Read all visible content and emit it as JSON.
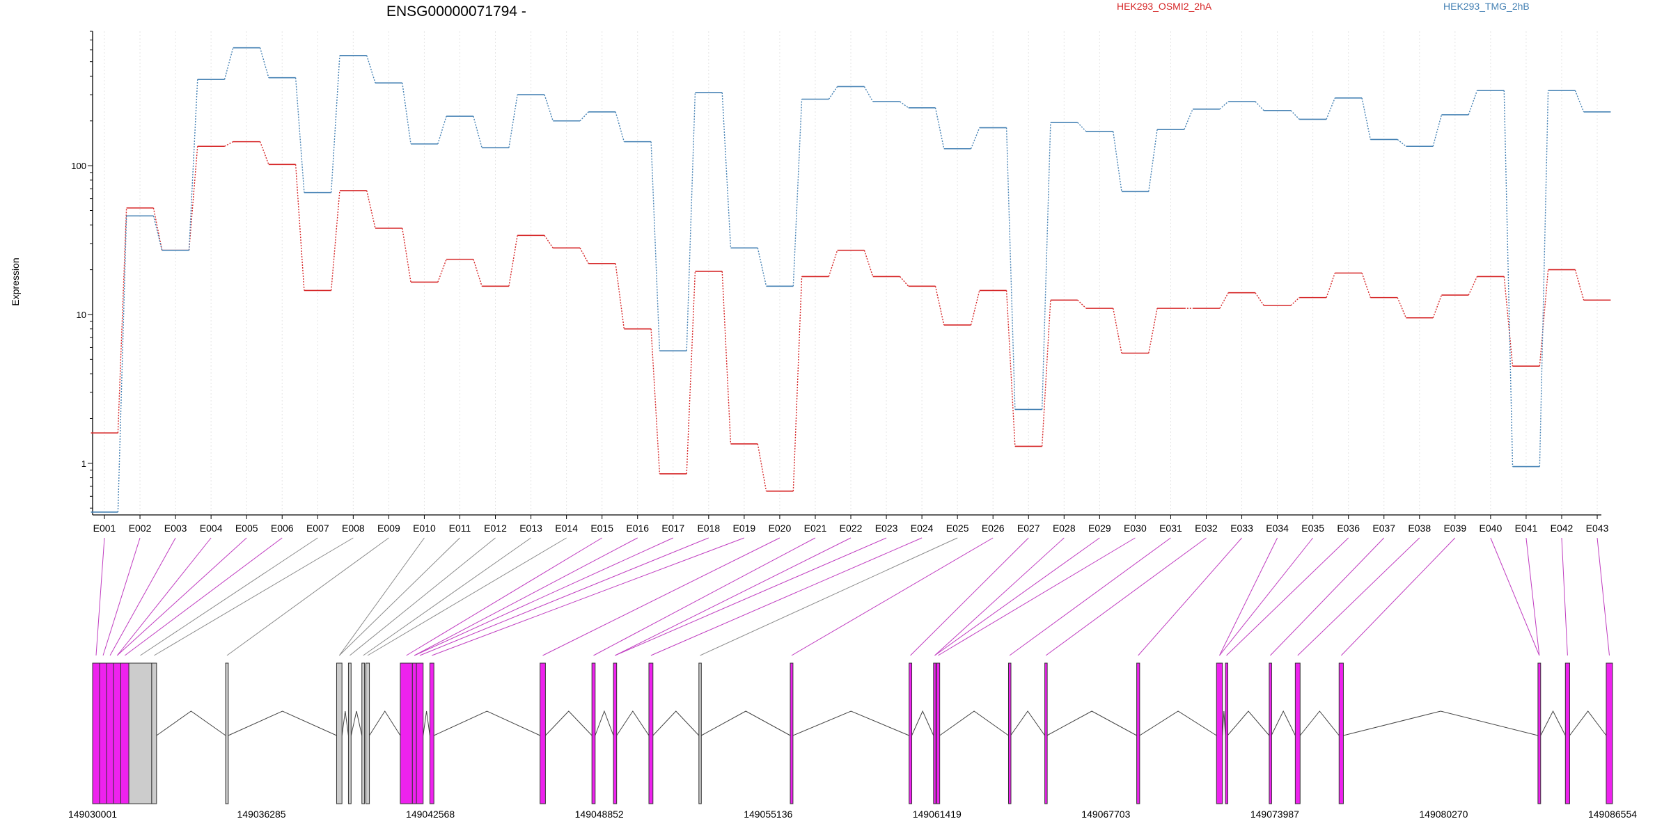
{
  "chart_data": {
    "type": "line",
    "title": "ENSG00000071794 -",
    "ylabel": "Expression",
    "xlabel": "",
    "y_scale": "log",
    "ylim": [
      0.45,
      800
    ],
    "y_ticks": [
      1,
      10,
      100
    ],
    "y_tick_labels": [
      "1",
      "10",
      "100"
    ],
    "grid": "vertical dotted per exon",
    "legend_position": "top",
    "categories": [
      "E001",
      "E002",
      "E003",
      "E004",
      "E005",
      "E006",
      "E007",
      "E008",
      "E009",
      "E010",
      "E011",
      "E012",
      "E013",
      "E014",
      "E015",
      "E016",
      "E017",
      "E018",
      "E019",
      "E020",
      "E021",
      "E022",
      "E023",
      "E024",
      "E025",
      "E026",
      "E027",
      "E028",
      "E029",
      "E030",
      "E031",
      "E032",
      "E033",
      "E034",
      "E035",
      "E036",
      "E037",
      "E038",
      "E039",
      "E040",
      "E041",
      "E042",
      "E043"
    ],
    "series": [
      {
        "name": "HEK293_OSMI2_2hA",
        "color": "#d62728",
        "values": [
          1.6,
          52,
          27,
          135,
          145,
          102,
          14.5,
          68,
          38,
          16.5,
          23.5,
          15.5,
          34,
          28,
          22,
          8,
          0.85,
          19.5,
          1.35,
          0.65,
          18,
          27,
          18,
          15.5,
          8.5,
          14.5,
          1.3,
          12.5,
          11,
          5.5,
          11,
          11,
          14,
          11.5,
          13,
          19,
          13,
          9.5,
          13.5,
          18,
          4.5,
          20,
          12.5
        ]
      },
      {
        "name": "HEK293_TMG_2hB",
        "color": "#4682b4",
        "values": [
          0.47,
          46,
          27,
          380,
          620,
          390,
          66,
          550,
          360,
          140,
          215,
          132,
          300,
          200,
          230,
          145,
          5.7,
          310,
          28,
          15.5,
          280,
          340,
          270,
          245,
          130,
          180,
          2.3,
          195,
          170,
          67,
          175,
          240,
          270,
          235,
          205,
          285,
          150,
          135,
          220,
          320,
          0.95,
          320,
          230
        ]
      }
    ]
  },
  "gene_model": {
    "positions": [
      "149030001",
      "149036285",
      "149042568",
      "149048852",
      "149055136",
      "149061419",
      "149067703",
      "149073987",
      "149080270",
      "149086554"
    ],
    "range": [
      149030001,
      149086554
    ],
    "colors": {
      "tested": "#ee22ee",
      "untested": "#cccccc"
    },
    "features": [
      {
        "s": 149030001,
        "e": 149030260,
        "c": "magenta"
      },
      {
        "s": 149030260,
        "e": 149030520,
        "c": "magenta"
      },
      {
        "s": 149030520,
        "e": 149030780,
        "c": "magenta"
      },
      {
        "s": 149030780,
        "e": 149031050,
        "c": "magenta"
      },
      {
        "s": 149031050,
        "e": 149031350,
        "c": "magenta"
      },
      {
        "s": 149031350,
        "e": 149032200,
        "c": "gray"
      },
      {
        "s": 149032200,
        "e": 149032380,
        "c": "gray"
      },
      {
        "s": 149034950,
        "e": 149035050,
        "c": "gray"
      },
      {
        "s": 149039080,
        "e": 149039280,
        "c": "gray"
      },
      {
        "s": 149039520,
        "e": 149039620,
        "c": "gray"
      },
      {
        "s": 149040020,
        "e": 149040120,
        "c": "gray"
      },
      {
        "s": 149040170,
        "e": 149040300,
        "c": "gray"
      },
      {
        "s": 149041450,
        "e": 149041900,
        "c": "magenta"
      },
      {
        "s": 149041900,
        "e": 149042050,
        "c": "magenta"
      },
      {
        "s": 149042050,
        "e": 149042300,
        "c": "magenta"
      },
      {
        "s": 149042550,
        "e": 149042700,
        "c": "magenta"
      },
      {
        "s": 149046650,
        "e": 149046850,
        "c": "magenta"
      },
      {
        "s": 149048580,
        "e": 149048700,
        "c": "magenta"
      },
      {
        "s": 149049380,
        "e": 149049500,
        "c": "magenta"
      },
      {
        "s": 149050700,
        "e": 149050850,
        "c": "magenta"
      },
      {
        "s": 149052560,
        "e": 149052650,
        "c": "gray"
      },
      {
        "s": 149055960,
        "e": 149056060,
        "c": "magenta"
      },
      {
        "s": 149060380,
        "e": 149060480,
        "c": "magenta"
      },
      {
        "s": 149061290,
        "e": 149061380,
        "c": "magenta"
      },
      {
        "s": 149061400,
        "e": 149061520,
        "c": "magenta"
      },
      {
        "s": 149064080,
        "e": 149064160,
        "c": "magenta"
      },
      {
        "s": 149065430,
        "e": 149065510,
        "c": "magenta"
      },
      {
        "s": 149068850,
        "e": 149068960,
        "c": "magenta"
      },
      {
        "s": 149071820,
        "e": 149072040,
        "c": "magenta"
      },
      {
        "s": 149072150,
        "e": 149072230,
        "c": "magenta"
      },
      {
        "s": 149073780,
        "e": 149073860,
        "c": "magenta"
      },
      {
        "s": 149074750,
        "e": 149074930,
        "c": "magenta"
      },
      {
        "s": 149076380,
        "e": 149076540,
        "c": "magenta"
      },
      {
        "s": 149083780,
        "e": 149083880,
        "c": "magenta"
      },
      {
        "s": 149084800,
        "e": 149084960,
        "c": "magenta"
      },
      {
        "s": 149086320,
        "e": 149086554,
        "c": "magenta"
      }
    ]
  }
}
